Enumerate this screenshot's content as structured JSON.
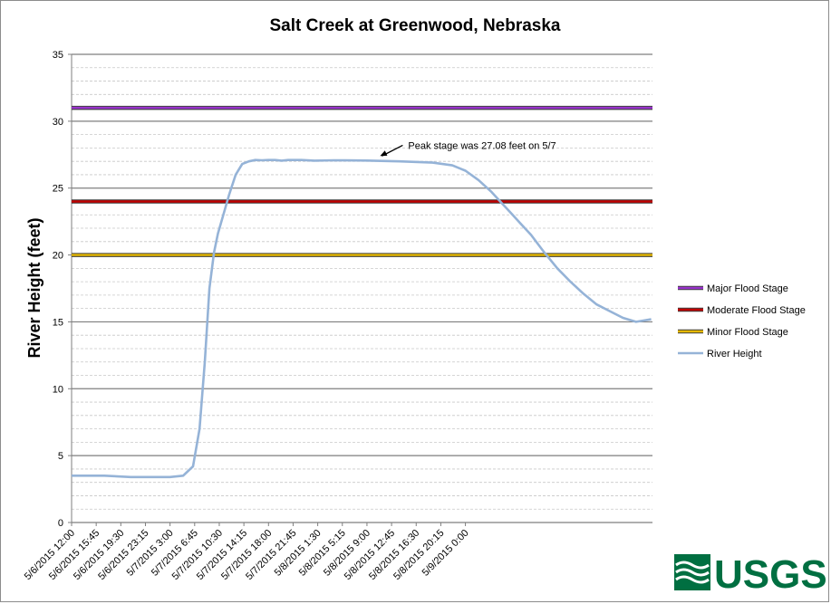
{
  "chart_data": {
    "type": "line",
    "title": "Salt Creek at Greenwood, Nebraska",
    "xlabel": "",
    "ylabel": "River Height (feet)",
    "ylim": [
      0,
      35
    ],
    "y_ticks": [
      0,
      5,
      10,
      15,
      20,
      25,
      30,
      35
    ],
    "x_tick_labels": [
      "5/6/2015 12:00",
      "5/6/2015 15:45",
      "5/6/2015 19:30",
      "5/6/2015 23:15",
      "5/7/2015 3:00",
      "5/7/2015 6:45",
      "5/7/2015 10:30",
      "5/7/2015 14:15",
      "5/7/2015 18:00",
      "5/7/2015 21:45",
      "5/8/2015 1:30",
      "5/8/2015 5:15",
      "5/8/2015 9:00",
      "5/8/2015 12:45",
      "5/8/2015 16:30",
      "5/8/2015 20:15",
      "5/9/2015 0:00"
    ],
    "x_range_hours": [
      0,
      88.5
    ],
    "grid": "horizontal major and minor",
    "legend_position": "right",
    "series": [
      {
        "name": "Major Flood Stage",
        "color": "#9933cc",
        "x": [
          0,
          88.5
        ],
        "y": [
          31,
          31
        ]
      },
      {
        "name": "Moderate Flood Stage",
        "color": "#c00000",
        "x": [
          0,
          88.5
        ],
        "y": [
          24,
          24
        ]
      },
      {
        "name": "Minor Flood Stage",
        "color": "#e6b800",
        "x": [
          0,
          88.5
        ],
        "y": [
          20,
          20
        ]
      },
      {
        "name": "River Height",
        "color": "#95b3d7",
        "x": [
          0,
          5,
          9,
          12,
          15,
          17,
          18.5,
          19.5,
          20.3,
          21,
          21.7,
          22.3,
          23,
          24,
          25,
          26,
          27,
          28,
          29,
          30,
          31,
          32,
          33,
          35,
          37,
          40,
          45,
          50,
          55,
          58,
          60,
          62,
          64,
          65.5,
          67,
          68.5,
          70,
          72,
          74,
          76,
          78,
          80,
          82,
          84,
          86,
          88.3
        ],
        "y": [
          3.5,
          3.5,
          3.4,
          3.4,
          3.4,
          3.5,
          4.2,
          7,
          12,
          17.5,
          20.2,
          21.6,
          22.8,
          24.5,
          26,
          26.8,
          27,
          27.1,
          27.08,
          27.1,
          27.1,
          27.05,
          27.1,
          27.1,
          27.05,
          27.08,
          27.06,
          27,
          26.9,
          26.7,
          26.3,
          25.6,
          24.7,
          23.9,
          23.1,
          22.3,
          21.5,
          20.2,
          19,
          18,
          17.1,
          16.3,
          15.8,
          15.3,
          15,
          15.2
        ]
      }
    ],
    "annotations": [
      {
        "text": "Peak stage was 27.08 feet on 5/7",
        "x": 51,
        "y": 28.2,
        "arrow_to": [
          47,
          27.4
        ]
      }
    ]
  },
  "logo": {
    "text": "USGS"
  }
}
